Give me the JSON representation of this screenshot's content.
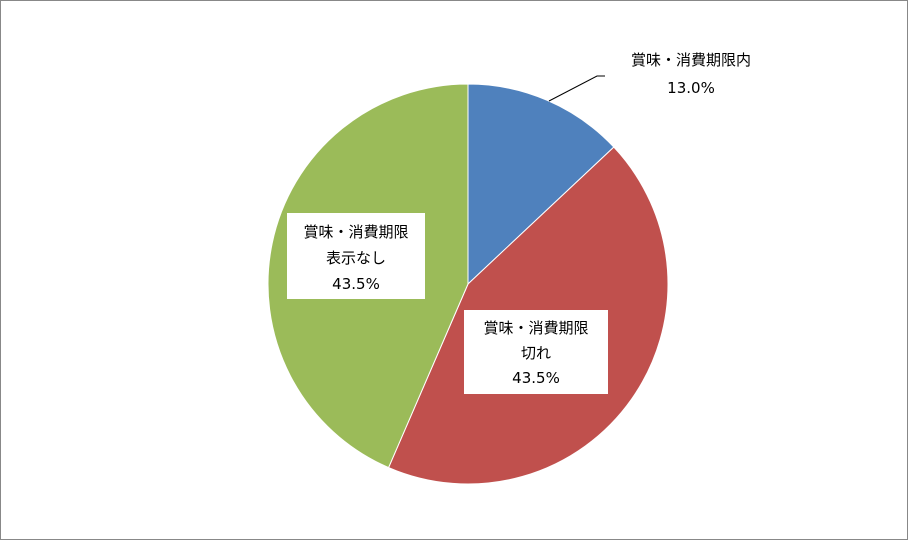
{
  "chart_data": {
    "type": "pie",
    "start_angle": "top, clockwise",
    "slices": [
      {
        "label": "賞味・消費期限内",
        "value": 13.0,
        "value_label": "13.0%",
        "color": "#4F81BD"
      },
      {
        "label": "賞味・消費期限切れ",
        "label_lines": [
          "賞味・消費期限",
          "切れ"
        ],
        "value": 43.5,
        "value_label": "43.5%",
        "color": "#C0504D"
      },
      {
        "label": "賞味・消費期限表示なし",
        "label_lines": [
          "賞味・消費期限",
          "表示なし"
        ],
        "value": 43.5,
        "value_label": "43.5%",
        "color": "#9BBB59"
      }
    ]
  }
}
